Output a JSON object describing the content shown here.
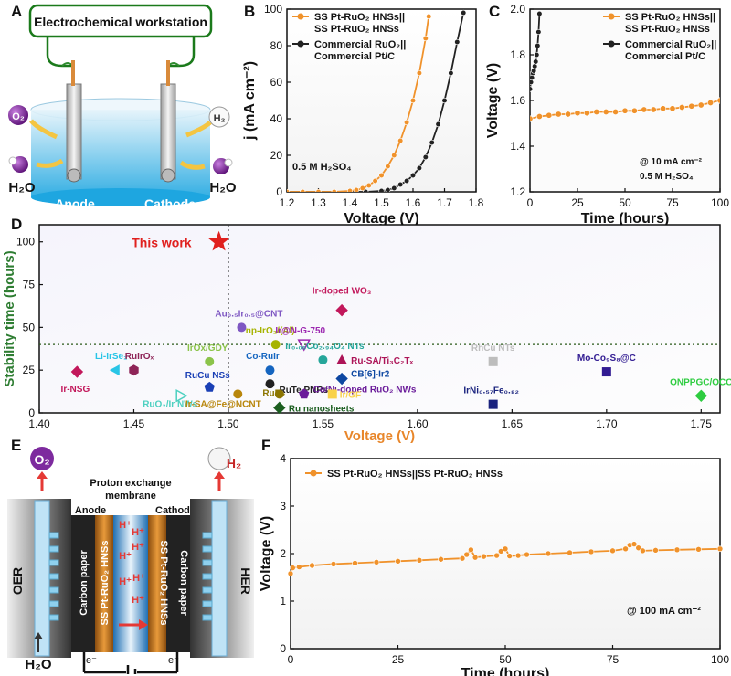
{
  "panels": {
    "a": "A",
    "b": "B",
    "c": "C",
    "d": "D",
    "e": "E",
    "f": "F"
  },
  "panel_a": {
    "workstation": "Electrochemical workstation",
    "o2": "O₂",
    "h2": "H₂",
    "h2o_left": "H₂O",
    "h2o_right": "H₂O",
    "anode": "Anode",
    "cathode": "Cathode"
  },
  "panel_e": {
    "o2": "O₂",
    "h2": "H₂",
    "membrane_line1": "Proton exchange",
    "membrane_line2": "membrane",
    "anode": "Anode",
    "cathode": "Cathode",
    "oer": "OER",
    "her": "HER",
    "carbon_paper": "Carbon paper",
    "catalyst": "SS Pt-RuO₂ HNSs",
    "proton": "H⁺",
    "electron": "e⁻",
    "h2o": "H₂O"
  },
  "colors": {
    "orange": "#F0922B",
    "black": "#222222",
    "green": "#2E7D32",
    "panelD_xlabel": "#E8862A",
    "panelD_ylabel": "#2E7D32"
  },
  "chart_data": [
    {
      "id": "B",
      "type": "line",
      "xlabel": "Voltage (V)",
      "ylabel": "j (mA cm⁻²)",
      "xlim": [
        1.2,
        1.8
      ],
      "ylim": [
        0,
        100
      ],
      "xticks": [
        "1.2",
        "1.3",
        "1.4",
        "1.5",
        "1.6",
        "1.7",
        "1.8"
      ],
      "yticks": [
        "0",
        "20",
        "40",
        "60",
        "80",
        "100"
      ],
      "annotation": "0.5 M H₂SO₄",
      "series": [
        {
          "name": "SS Pt-RuO₂ HNSs|| SS Pt-RuO₂ HNSs",
          "legend_line1": "SS Pt-RuO₂ HNSs||",
          "legend_line2": "SS Pt-RuO₂ HNSs",
          "color": "#F0922B",
          "x": [
            1.2,
            1.25,
            1.3,
            1.35,
            1.4,
            1.42,
            1.44,
            1.46,
            1.48,
            1.5,
            1.52,
            1.54,
            1.56,
            1.58,
            1.6,
            1.62,
            1.64,
            1.65
          ],
          "y": [
            0,
            0,
            0,
            0,
            0.5,
            1,
            2,
            3.5,
            6,
            9,
            14,
            20,
            28,
            38,
            50,
            65,
            84,
            96
          ]
        },
        {
          "name": "Commercial RuO₂|| Commercial Pt/C",
          "legend_line1": "Commercial RuO₂||",
          "legend_line2": "Commercial Pt/C",
          "color": "#222222",
          "x": [
            1.2,
            1.3,
            1.4,
            1.45,
            1.5,
            1.52,
            1.54,
            1.56,
            1.58,
            1.6,
            1.62,
            1.64,
            1.66,
            1.68,
            1.7,
            1.72,
            1.74,
            1.76
          ],
          "y": [
            0,
            0,
            0,
            0,
            0.5,
            1,
            2,
            4,
            6,
            9,
            13,
            19,
            27,
            37,
            50,
            65,
            82,
            98
          ]
        }
      ]
    },
    {
      "id": "C",
      "type": "line",
      "xlabel": "Time (hours)",
      "ylabel": "Voltage (V)",
      "xlim": [
        0,
        100
      ],
      "ylim": [
        1.2,
        2.0
      ],
      "xticks": [
        "0",
        "25",
        "50",
        "75",
        "100"
      ],
      "yticks": [
        "1.2",
        "1.4",
        "1.6",
        "1.8",
        "2.0"
      ],
      "annotation_line1": "@ 10 mA cm⁻²",
      "annotation_line2": "0.5 M H₂SO₄",
      "series": [
        {
          "name": "SS Pt-RuO₂ HNSs|| SS Pt-RuO₂ HNSs",
          "legend_line1": "SS Pt-RuO₂ HNSs||",
          "legend_line2": "SS Pt-RuO₂ HNSs",
          "color": "#F0922B",
          "x": [
            0,
            5,
            10,
            15,
            20,
            25,
            30,
            35,
            40,
            45,
            50,
            55,
            60,
            65,
            70,
            75,
            80,
            85,
            90,
            95,
            100
          ],
          "y": [
            1.52,
            1.53,
            1.535,
            1.54,
            1.54,
            1.545,
            1.545,
            1.55,
            1.55,
            1.55,
            1.555,
            1.555,
            1.56,
            1.56,
            1.565,
            1.565,
            1.57,
            1.575,
            1.58,
            1.59,
            1.6
          ]
        },
        {
          "name": "Commercial RuO₂|| Commercial Pt/C",
          "legend_line1": "Commercial RuO₂||",
          "legend_line2": "Commercial Pt/C",
          "color": "#222222",
          "x": [
            0,
            0.5,
            1,
            1.5,
            2,
            2.5,
            3,
            3.5,
            4,
            4.5,
            5
          ],
          "y": [
            1.65,
            1.68,
            1.7,
            1.72,
            1.73,
            1.75,
            1.77,
            1.8,
            1.84,
            1.9,
            1.98
          ]
        }
      ]
    },
    {
      "id": "D",
      "type": "scatter",
      "xlabel": "Voltage (V)",
      "ylabel": "Stability time (hours)",
      "xlim": [
        1.4,
        1.76
      ],
      "ylim": [
        0,
        110
      ],
      "xticks": [
        "1.40",
        "1.45",
        "1.50",
        "1.55",
        "1.60",
        "1.65",
        "1.70",
        "1.75"
      ],
      "yticks": [
        "0",
        "25",
        "50",
        "75",
        "100"
      ],
      "reference_x": 1.5,
      "reference_y": 40,
      "points": [
        {
          "label": "This work",
          "x": 1.495,
          "y": 100,
          "marker": "star",
          "color": "#E0201E"
        },
        {
          "label": "Ir-NSG",
          "x": 1.42,
          "y": 24,
          "marker": "diamond",
          "color": "#C2185B"
        },
        {
          "label": "Li-IrSe₂",
          "x": 1.44,
          "y": 25,
          "marker": "triangle-left",
          "color": "#29C5E6"
        },
        {
          "label": "RuIrOₓ",
          "x": 1.45,
          "y": 25,
          "marker": "hexagon",
          "color": "#8E2457"
        },
        {
          "label": "RuO₂/Ir NWs",
          "x": 1.475,
          "y": 10,
          "marker": "triangle-right",
          "color": "#4DD0C0"
        },
        {
          "label": "RuCu NSs",
          "x": 1.49,
          "y": 15,
          "marker": "pentagon",
          "color": "#1A3FB5"
        },
        {
          "label": "IrOx/GDY",
          "x": 1.49,
          "y": 30,
          "marker": "circle",
          "color": "#8BC34A"
        },
        {
          "label": "Ir-SA@Fe@NCNT",
          "x": 1.505,
          "y": 11,
          "marker": "circle",
          "color": "#B8860B"
        },
        {
          "label": "Au₀.₅Ir₀.₅@CNT",
          "x": 1.507,
          "y": 50,
          "marker": "circle",
          "color": "#7E57C2"
        },
        {
          "label": "np-IrO₂/(Al)",
          "x": 1.525,
          "y": 40,
          "marker": "circle",
          "color": "#A6B300"
        },
        {
          "label": "Co-RuIr",
          "x": 1.522,
          "y": 25,
          "marker": "circle",
          "color": "#1565C0"
        },
        {
          "label": "RuTe PNRs",
          "x": 1.522,
          "y": 17,
          "marker": "circle",
          "color": "#212121"
        },
        {
          "label": "RuB₂",
          "x": 1.527,
          "y": 11,
          "marker": "circle",
          "color": "#8B7500"
        },
        {
          "label": "Ru nanosheets",
          "x": 1.527,
          "y": 3,
          "marker": "diamond",
          "color": "#1B5E20"
        },
        {
          "label": "Ir@N-G-750",
          "x": 1.54,
          "y": 40,
          "marker": "triangle-down",
          "color": "#9C27B0"
        },
        {
          "label": "Co/Ni-doped RuO₂ NWs",
          "x": 1.54,
          "y": 11,
          "marker": "pentagon",
          "color": "#6A1B9A"
        },
        {
          "label": "Ir₀.₀₆Co₂.₉₄O₄ NTs",
          "x": 1.55,
          "y": 31,
          "marker": "circle",
          "color": "#26A69A"
        },
        {
          "label": "Ru-SA/Ti₃C₂Tₓ",
          "x": 1.56,
          "y": 31,
          "marker": "triangle-up",
          "color": "#AD1457"
        },
        {
          "label": "CB[6]-Ir2",
          "x": 1.56,
          "y": 20,
          "marker": "diamond",
          "color": "#0D47A1"
        },
        {
          "label": "Ir/GF",
          "x": 1.555,
          "y": 11,
          "marker": "square",
          "color": "#F9D24A"
        },
        {
          "label": "Ir-doped WO₃",
          "x": 1.56,
          "y": 60,
          "marker": "diamond",
          "color": "#C2185B"
        },
        {
          "label": "RhCu NTs",
          "x": 1.64,
          "y": 30,
          "marker": "square",
          "color": "#BDBDBD"
        },
        {
          "label": "IrNi₀.₅₇Fe₀.₈₂",
          "x": 1.64,
          "y": 5,
          "marker": "square",
          "color": "#1A237E"
        },
        {
          "label": "Mo-Co₉S₈@C",
          "x": 1.7,
          "y": 24,
          "marker": "square",
          "color": "#311B92"
        },
        {
          "label": "ONPPGC/OCC",
          "x": 1.75,
          "y": 10,
          "marker": "diamond",
          "color": "#2ECC40"
        }
      ]
    },
    {
      "id": "F",
      "type": "line",
      "xlabel": "Time (hours)",
      "ylabel": "Voltage (V)",
      "xlim": [
        0,
        100
      ],
      "ylim": [
        0,
        4
      ],
      "xticks": [
        "0",
        "25",
        "50",
        "75",
        "100"
      ],
      "yticks": [
        "0",
        "1",
        "2",
        "3",
        "4"
      ],
      "annotation": "@ 100 mA cm⁻²",
      "series": [
        {
          "name": "SS Pt-RuO₂ HNSs||SS Pt-RuO₂ HNSs",
          "color": "#F0922B",
          "x": [
            0,
            0.5,
            2,
            5,
            10,
            15,
            20,
            25,
            30,
            35,
            40,
            41,
            42,
            43,
            45,
            48,
            49,
            50,
            51,
            53,
            55,
            60,
            65,
            70,
            75,
            78,
            79,
            80,
            81,
            82,
            85,
            90,
            95,
            100
          ],
          "y": [
            1.58,
            1.7,
            1.72,
            1.75,
            1.78,
            1.8,
            1.82,
            1.84,
            1.86,
            1.88,
            1.9,
            1.98,
            2.08,
            1.92,
            1.94,
            1.96,
            2.05,
            2.1,
            1.95,
            1.96,
            1.98,
            2.0,
            2.02,
            2.04,
            2.06,
            2.1,
            2.18,
            2.2,
            2.12,
            2.06,
            2.07,
            2.08,
            2.09,
            2.1
          ]
        }
      ]
    }
  ]
}
